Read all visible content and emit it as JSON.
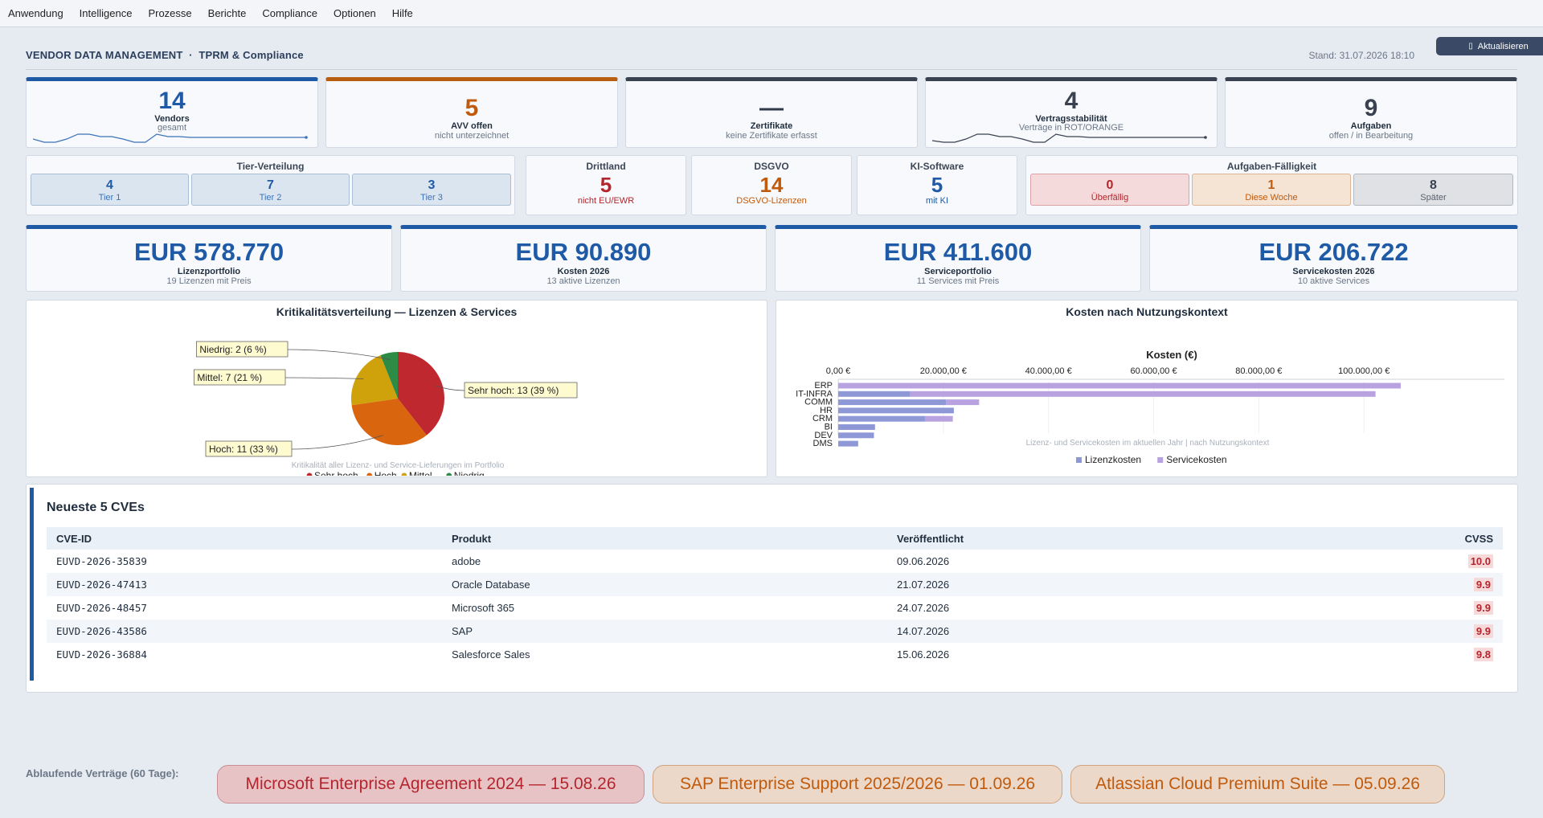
{
  "menu": [
    "Anwendung",
    "Intelligence",
    "Prozesse",
    "Berichte",
    "Compliance",
    "Optionen",
    "Hilfe"
  ],
  "header": {
    "title": "VENDOR DATA MANAGEMENT  ·  TPRM & Compliance",
    "stand": "Stand: 31.07.2026 18:10",
    "refresh_icon": "refresh-icon",
    "refresh_label": "Aktualisieren"
  },
  "kpis": [
    {
      "value": "14",
      "label": "Vendors",
      "sub": "gesamt",
      "color": "#1f5aa6",
      "bar": "#1f5aa6"
    },
    {
      "value": "5",
      "label": "AVV offen",
      "sub": "nicht unterzeichnet",
      "color": "#c05a0c",
      "bar": "#b85e10"
    },
    {
      "value": "—",
      "label": "Zertifikate",
      "sub": "keine Zertifikate erfasst",
      "color": "#2f3a4a",
      "bar": "#3a4150"
    },
    {
      "value": "4",
      "label": "Vertragsstabilität",
      "sub": "Verträge in ROT/ORANGE",
      "color": "#3a4150",
      "bar": "#3a4150"
    },
    {
      "value": "9",
      "label": "Aufgaben",
      "sub": "offen / in Bearbeitung",
      "color": "#3a4150",
      "bar": "#3a4150"
    }
  ],
  "tier": {
    "title": "Tier-Verteilung",
    "items": [
      {
        "value": "4",
        "label": "Tier 1"
      },
      {
        "value": "7",
        "label": "Tier 2"
      },
      {
        "value": "3",
        "label": "Tier 3"
      }
    ]
  },
  "stats": [
    {
      "title": "Drittland",
      "value": "5",
      "label": "nicht EU/EWR",
      "color": "#b3262d"
    },
    {
      "title": "DSGVO",
      "value": "14",
      "label": "DSGVO-Lizenzen",
      "color": "#c05a0c"
    },
    {
      "title": "KI-Software",
      "value": "5",
      "label": "mit KI",
      "color": "#1f5aa6"
    }
  ],
  "tasks": {
    "title": "Aufgaben-Fälligkeit",
    "items": [
      {
        "value": "0",
        "label": "Überfällig",
        "color": "#b3262d",
        "bg": "#f4dadb",
        "border": "#d9a3a6"
      },
      {
        "value": "1",
        "label": "Diese Woche",
        "color": "#c05a0c",
        "bg": "#f5e3d4",
        "border": "#dcb394"
      },
      {
        "value": "8",
        "label": "Später",
        "color": "#3a4150",
        "bg": "#dfe1e4",
        "border": "#b3b8bf"
      }
    ]
  },
  "money": [
    {
      "value": "EUR 578.770",
      "label": "Lizenzportfolio",
      "sub": "19 Lizenzen mit Preis"
    },
    {
      "value": "EUR 90.890",
      "label": "Kosten 2026",
      "sub": "13 aktive Lizenzen"
    },
    {
      "value": "EUR 411.600",
      "label": "Serviceportfolio",
      "sub": "11 Services mit Preis"
    },
    {
      "value": "EUR 206.722",
      "label": "Servicekosten 2026",
      "sub": "10 aktive Services"
    }
  ],
  "chart_data": [
    {
      "type": "pie",
      "title": "Kritikalitätsverteilung — Lizenzen & Services",
      "caption": "Kritikalität aller Lizenz- und Service-Lieferungen im Portfolio",
      "slices": [
        {
          "name": "Sehr hoch",
          "value": 13,
          "label": "Sehr hoch: 13 (39 %)",
          "color": "#c0282f"
        },
        {
          "name": "Hoch",
          "value": 11,
          "label": "Hoch: 11 (33 %)",
          "color": "#d9650e"
        },
        {
          "name": "Mittel",
          "value": 7,
          "label": "Mittel: 7 (21 %)",
          "color": "#cfa20b"
        },
        {
          "name": "Niedrig",
          "value": 2,
          "label": "Niedrig: 2 (6 %)",
          "color": "#2e8b45"
        }
      ],
      "legend": "bottom"
    },
    {
      "type": "bar",
      "orientation": "horizontal",
      "stacked": true,
      "title": "Kosten nach Nutzungskontext",
      "xlabel": "Kosten (€)",
      "xlim": [
        0,
        110000
      ],
      "xticks": [
        "0,00 €",
        "20.000,00 €",
        "40.000,00 €",
        "60.000,00 €",
        "80.000,00 €",
        "100.000,00 €"
      ],
      "xtick_values": [
        0,
        20000,
        40000,
        60000,
        80000,
        100000
      ],
      "categories": [
        "ERP",
        "IT-INFRA",
        "COMM",
        "HR",
        "CRM",
        "BI",
        "DEV",
        "DMS"
      ],
      "series": [
        {
          "name": "Lizenzkosten",
          "color": "#8e98d6",
          "values": [
            0,
            13700,
            20500,
            22000,
            16500,
            7000,
            6800,
            3800
          ]
        },
        {
          "name": "Servicekosten",
          "color": "#b8a3e0",
          "values": [
            107000,
            88500,
            6300,
            0,
            5300,
            0,
            0,
            0
          ]
        }
      ],
      "caption": "Lizenz- und Servicekosten im aktuellen Jahr | nach Nutzungskontext",
      "legend": "bottom"
    }
  ],
  "cve": {
    "title": "Neueste 5 CVEs",
    "columns": [
      "CVE-ID",
      "Produkt",
      "Veröffentlicht",
      "CVSS"
    ],
    "rows": [
      {
        "id": "EUVD-2026-35839",
        "product": "adobe",
        "date": "09.06.2026",
        "cvss": "10.0"
      },
      {
        "id": "EUVD-2026-47413",
        "product": "Oracle Database",
        "date": "21.07.2026",
        "cvss": "9.9"
      },
      {
        "id": "EUVD-2026-48457",
        "product": "Microsoft 365",
        "date": "24.07.2026",
        "cvss": "9.9"
      },
      {
        "id": "EUVD-2026-43586",
        "product": "SAP",
        "date": "14.07.2026",
        "cvss": "9.9"
      },
      {
        "id": "EUVD-2026-36884",
        "product": "Salesforce Sales",
        "date": "15.06.2026",
        "cvss": "9.8"
      }
    ]
  },
  "expiring": {
    "label": "Ablaufende Verträge (60 Tage):",
    "items": [
      {
        "text": "Microsoft Enterprise Agreement 2024 — 15.08.26",
        "color": "#b3262d",
        "bg": "#e8c3c6",
        "border": "#c98f94"
      },
      {
        "text": "SAP Enterprise Support 2025/2026 — 01.09.26",
        "color": "#c05a0c",
        "bg": "#ecd8c8",
        "border": "#d0a27e"
      },
      {
        "text": "Atlassian Cloud Premium Suite — 05.09.26",
        "color": "#c05a0c",
        "bg": "#ecd8c8",
        "border": "#d0a27e"
      }
    ]
  }
}
